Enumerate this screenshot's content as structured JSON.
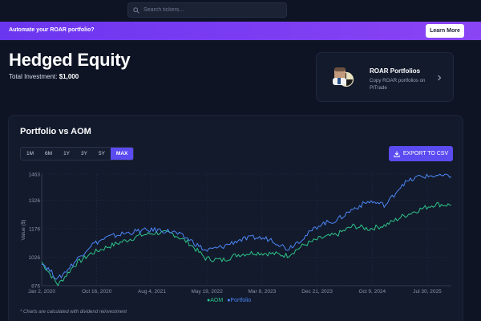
{
  "search": {
    "placeholder": "Search tickers..."
  },
  "banner": {
    "text": "Automate your ROAR portfolio?",
    "button": "Learn More"
  },
  "header": {
    "title": "Hedged Equity",
    "investment_label": "Total Investment:",
    "investment_value": "$1,000"
  },
  "roar_card": {
    "title": "ROAR Portfolios",
    "subtitle": "Copy ROAR portfolios on PITrade"
  },
  "panel": {
    "title": "Portfolio vs AOM",
    "ranges": [
      {
        "label": "1M",
        "active": false
      },
      {
        "label": "6M",
        "active": false
      },
      {
        "label": "1Y",
        "active": false
      },
      {
        "label": "3Y",
        "active": false
      },
      {
        "label": "5Y",
        "active": false
      },
      {
        "label": "MAX",
        "active": true
      }
    ],
    "export_label": "EXPORT TO CSV",
    "footnote": "* Charts are calculated with dividend reinvestment"
  },
  "colors": {
    "accent": "#5b4cf2",
    "banner": "#7a3cf2",
    "portfolio": "#4d86f5",
    "aom": "#2ec488"
  },
  "chart_data": {
    "type": "line",
    "ylabel": "Value ($)",
    "xlabel": "",
    "ylim": [
      876,
      1463
    ],
    "yticks": [
      876,
      1026,
      1176,
      1326,
      1463
    ],
    "xticks": [
      "Jan 2, 2020",
      "Oct 16, 2020",
      "Aug 4, 2021",
      "May 19, 2022",
      "Mar 8, 2023",
      "Dec 21, 2023",
      "Oct 9, 2024",
      "Jul 30, 2025"
    ],
    "x": [
      "2020-01",
      "2020-03",
      "2020-06",
      "2020-09",
      "2020-12",
      "2021-03",
      "2021-06",
      "2021-09",
      "2021-12",
      "2022-03",
      "2022-06",
      "2022-09",
      "2022-12",
      "2023-03",
      "2023-06",
      "2023-09",
      "2023-12",
      "2024-03",
      "2024-06",
      "2024-09",
      "2024-12",
      "2025-03",
      "2025-06",
      "2025-09",
      "2025-12",
      "2026-02"
    ],
    "series": [
      {
        "name": "AOM",
        "color": "#2ec488",
        "values": [
          1000,
          880,
          985,
          1045,
          1080,
          1110,
          1140,
          1155,
          1150,
          1100,
          1020,
          1010,
          1040,
          1050,
          1045,
          1035,
          1090,
          1125,
          1145,
          1190,
          1175,
          1195,
          1240,
          1275,
          1305,
          1300
        ]
      },
      {
        "name": "Portfolio",
        "color": "#4d86f5",
        "values": [
          1000,
          910,
          1000,
          1090,
          1130,
          1150,
          1165,
          1170,
          1160,
          1120,
          1060,
          1080,
          1115,
          1130,
          1120,
          1070,
          1130,
          1200,
          1220,
          1280,
          1320,
          1300,
          1410,
          1450,
          1455,
          1450
        ]
      }
    ],
    "legend": "bottom-center",
    "grid": true
  }
}
